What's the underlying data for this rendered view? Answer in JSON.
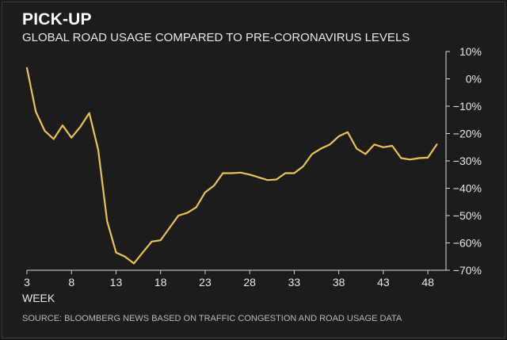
{
  "chart_data": {
    "type": "line",
    "title": "PICK-UP",
    "subtitle": "GLOBAL ROAD USAGE COMPARED TO PRE-CORONAVIRUS LEVELS",
    "xlabel": "WEEK",
    "ylabel": "",
    "source": "SOURCE: BLOOMBERG NEWS BASED ON TRAFFIC CONGESTION AND ROAD USAGE DATA",
    "xlim": [
      3,
      49.5
    ],
    "ylim": [
      -70,
      10
    ],
    "x_ticks": [
      3,
      8,
      13,
      18,
      23,
      28,
      33,
      38,
      43,
      48
    ],
    "y_ticks": [
      10,
      0,
      -10,
      -20,
      -30,
      -40,
      -50,
      -60,
      -70
    ],
    "y_tick_labels": [
      "10%",
      "0%",
      "−10%",
      "−20%",
      "−30%",
      "−40%",
      "−50%",
      "−60%",
      "−70%"
    ],
    "grid": false,
    "line_color": "#e8c35a",
    "series": [
      {
        "x": [
          3,
          4,
          5,
          6,
          7,
          8,
          9,
          10,
          11,
          12,
          13,
          14,
          15,
          16,
          17,
          18,
          19,
          20,
          21,
          22,
          23,
          24,
          25,
          26,
          27,
          28,
          29,
          30,
          31,
          32,
          33,
          34,
          35,
          36,
          37,
          38,
          39,
          40,
          41,
          42,
          43,
          44,
          45,
          46,
          47,
          48,
          49
        ],
        "values": [
          4,
          -12,
          -19,
          -22,
          -17,
          -21.5,
          -17.5,
          -12.5,
          -26,
          -52,
          -63.5,
          -65,
          -67.5,
          -63.5,
          -59.5,
          -59,
          -54.5,
          -50,
          -49,
          -47,
          -41.5,
          -39,
          -34.5,
          -34.5,
          -34.3,
          -35,
          -36,
          -37,
          -36.8,
          -34.5,
          -34.5,
          -32,
          -27.5,
          -25.5,
          -24,
          -21,
          -19.5,
          -25.5,
          -27.5,
          -24,
          -25,
          -24.5,
          -29,
          -29.5,
          -29,
          -28.8,
          -24
        ]
      }
    ]
  }
}
